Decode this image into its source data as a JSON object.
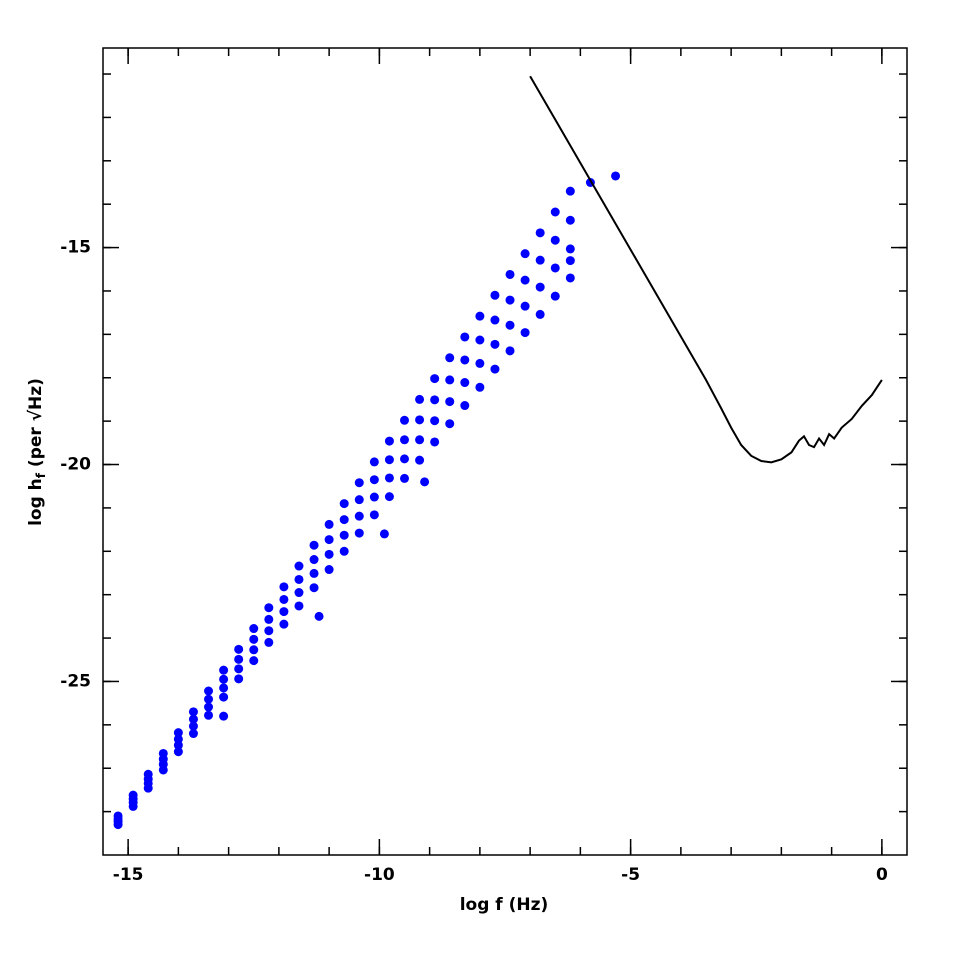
{
  "chart_data": {
    "type": "scatter",
    "xlabel": "log f (Hz)",
    "ylabel": [
      "log h",
      "f",
      " (per √Hz)"
    ],
    "xlim": [
      -15.5,
      0.5
    ],
    "ylim": [
      -29,
      -10.4
    ],
    "xticks": [
      -15,
      -10,
      -5,
      0
    ],
    "yticks": [
      -25,
      -20,
      -15
    ],
    "xminorticks": [
      -15,
      -14,
      -13,
      -12,
      -11,
      -10,
      -9,
      -8,
      -7,
      -6,
      -5,
      -4,
      -3,
      -2,
      -1,
      0
    ],
    "yminorticks": [
      -28,
      -27,
      -26,
      -25,
      -24,
      -23,
      -22,
      -21,
      -20,
      -19,
      -18,
      -17,
      -16,
      -15,
      -14,
      -13,
      -12,
      -11
    ],
    "series": [
      {
        "type": "scatter",
        "color": "#0000ff",
        "x": [
          -15.2,
          -15.2,
          -15.2,
          -15.2,
          -14.9,
          -14.9,
          -14.9,
          -14.9,
          -14.6,
          -14.6,
          -14.6,
          -14.6,
          -14.3,
          -14.3,
          -14.3,
          -14.3,
          -14.0,
          -14.0,
          -14.0,
          -14.0,
          -13.7,
          -13.7,
          -13.7,
          -13.7,
          -13.4,
          -13.4,
          -13.4,
          -13.4,
          -13.1,
          -13.1,
          -13.1,
          -13.1,
          -12.8,
          -12.8,
          -12.8,
          -12.8,
          -12.5,
          -12.5,
          -12.5,
          -12.5,
          -12.2,
          -12.2,
          -12.2,
          -12.2,
          -11.9,
          -11.9,
          -11.9,
          -11.9,
          -11.6,
          -11.6,
          -11.6,
          -11.6,
          -11.3,
          -11.3,
          -11.3,
          -11.3,
          -11.0,
          -11.0,
          -11.0,
          -11.0,
          -10.7,
          -10.7,
          -10.7,
          -10.7,
          -10.4,
          -10.4,
          -10.4,
          -10.4,
          -10.1,
          -10.1,
          -10.1,
          -10.1,
          -9.8,
          -9.8,
          -9.8,
          -9.8,
          -9.5,
          -9.5,
          -9.5,
          -9.5,
          -9.2,
          -9.2,
          -9.2,
          -9.2,
          -8.9,
          -8.9,
          -8.9,
          -8.9,
          -8.6,
          -8.6,
          -8.6,
          -8.6,
          -8.3,
          -8.3,
          -8.3,
          -8.3,
          -8.0,
          -8.0,
          -8.0,
          -8.0,
          -7.7,
          -7.7,
          -7.7,
          -7.7,
          -7.4,
          -7.4,
          -7.4,
          -7.4,
          -7.1,
          -7.1,
          -7.1,
          -7.1,
          -6.8,
          -6.8,
          -6.8,
          -6.8,
          -6.5,
          -6.5,
          -6.5,
          -6.5,
          -6.2,
          -6.2,
          -6.2,
          -6.2,
          -5.8,
          -5.3,
          -6.2,
          -9.1,
          -11.2,
          -13.1,
          -9.9
        ],
        "values": [
          -28.1,
          -28.17,
          -28.23,
          -28.3,
          -27.62,
          -27.71,
          -27.79,
          -27.88,
          -27.14,
          -27.25,
          -27.35,
          -27.46,
          -26.66,
          -26.79,
          -26.91,
          -27.04,
          -26.18,
          -26.33,
          -26.47,
          -26.62,
          -25.7,
          -25.87,
          -26.03,
          -26.2,
          -25.22,
          -25.41,
          -25.59,
          -25.78,
          -24.74,
          -24.95,
          -25.15,
          -25.36,
          -24.26,
          -24.49,
          -24.71,
          -24.94,
          -23.78,
          -24.03,
          -24.27,
          -24.52,
          -23.3,
          -23.57,
          -23.83,
          -24.1,
          -22.82,
          -23.11,
          -23.39,
          -23.68,
          -22.34,
          -22.65,
          -22.95,
          -23.26,
          -21.86,
          -22.19,
          -22.51,
          -22.84,
          -21.38,
          -21.73,
          -22.07,
          -22.42,
          -20.9,
          -21.27,
          -21.63,
          -22.0,
          -20.42,
          -20.81,
          -21.19,
          -21.58,
          -19.94,
          -20.35,
          -20.75,
          -21.16,
          -19.46,
          -19.89,
          -20.31,
          -20.74,
          -18.98,
          -19.43,
          -19.87,
          -20.32,
          -18.5,
          -18.97,
          -19.43,
          -19.9,
          -18.02,
          -18.51,
          -18.99,
          -19.48,
          -17.54,
          -18.05,
          -18.55,
          -19.06,
          -17.06,
          -17.59,
          -18.11,
          -18.64,
          -16.58,
          -17.13,
          -17.67,
          -18.22,
          -16.1,
          -16.67,
          -17.23,
          -17.8,
          -15.62,
          -16.21,
          -16.79,
          -17.38,
          -15.14,
          -15.75,
          -16.35,
          -16.96,
          -14.66,
          -15.29,
          -15.91,
          -16.54,
          -14.18,
          -14.83,
          -15.47,
          -16.12,
          -13.7,
          -14.37,
          -15.03,
          -15.7,
          -13.5,
          -13.35,
          -15.3,
          -20.4,
          -23.5,
          -25.8,
          -21.6
        ]
      },
      {
        "type": "line",
        "color": "#000000",
        "x": [
          -7.0,
          -6.0,
          -5.0,
          -4.0,
          -3.5,
          -3.2,
          -3.0,
          -2.8,
          -2.6,
          -2.4,
          -2.2,
          -2.0,
          -1.8,
          -1.65,
          -1.55,
          -1.45,
          -1.35,
          -1.25,
          -1.15,
          -1.05,
          -0.95,
          -0.8,
          -0.6,
          -0.4,
          -0.2,
          0.0
        ],
        "values": [
          -11.05,
          -13.05,
          -15.05,
          -17.05,
          -18.05,
          -18.7,
          -19.15,
          -19.55,
          -19.8,
          -19.92,
          -19.95,
          -19.88,
          -19.72,
          -19.45,
          -19.35,
          -19.55,
          -19.6,
          -19.4,
          -19.55,
          -19.3,
          -19.4,
          -19.15,
          -18.95,
          -18.65,
          -18.4,
          -18.05
        ]
      }
    ]
  }
}
